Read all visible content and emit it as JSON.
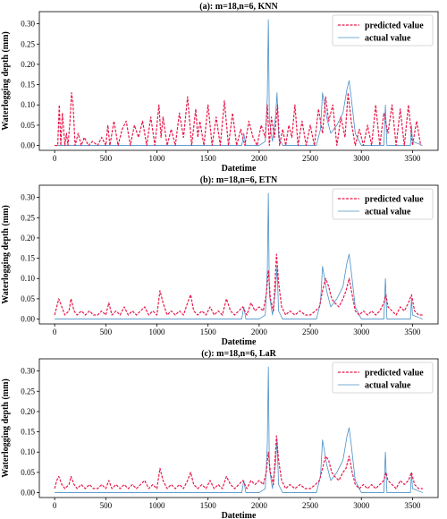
{
  "colors": {
    "predicted": "#e6194b",
    "actual": "#4a90c8",
    "axis": "#000000"
  },
  "chart_data": [
    {
      "type": "line",
      "title": "(a): m=18,n=6, KNN",
      "xlabel": "Datetime",
      "ylabel": "Waterlogging depth (mm)",
      "xlim": [
        -150,
        3750
      ],
      "ylim": [
        -0.012,
        0.33
      ],
      "xticks": [
        0,
        500,
        1000,
        1500,
        2000,
        2500,
        3000,
        3500
      ],
      "yticks": [
        0.0,
        0.05,
        0.1,
        0.15,
        0.2,
        0.25,
        0.3
      ],
      "ytick_labels": [
        "0.00",
        "0.05",
        "0.10",
        "0.15",
        "0.20",
        "0.25",
        "0.30"
      ],
      "legend_position": "upper right",
      "series": [
        {
          "name": "predicted value",
          "style": "dashed",
          "x": [
            0,
            30,
            45,
            60,
            75,
            100,
            115,
            130,
            150,
            165,
            180,
            200,
            230,
            260,
            290,
            330,
            370,
            420,
            460,
            500,
            520,
            540,
            580,
            620,
            660,
            700,
            740,
            780,
            820,
            860,
            900,
            940,
            980,
            1020,
            1040,
            1060,
            1100,
            1140,
            1180,
            1220,
            1260,
            1300,
            1340,
            1380,
            1400,
            1420,
            1460,
            1500,
            1540,
            1580,
            1620,
            1660,
            1700,
            1740,
            1780,
            1820,
            1860,
            1900,
            1940,
            1980,
            2020,
            2060,
            2080,
            2100,
            2120,
            2150,
            2180,
            2200,
            2230,
            2260,
            2290,
            2320,
            2350,
            2380,
            2420,
            2460,
            2500,
            2540,
            2580,
            2620,
            2650,
            2680,
            2720,
            2760,
            2800,
            2840,
            2870,
            2900,
            2940,
            2980,
            3020,
            3060,
            3100,
            3140,
            3180,
            3220,
            3260,
            3300,
            3340,
            3380,
            3420,
            3460,
            3500,
            3540,
            3580
          ],
          "y": [
            0.0,
            0.0,
            0.1,
            0.0,
            0.08,
            0.0,
            0.03,
            0.0,
            0.06,
            0.13,
            0.1,
            0.0,
            0.03,
            0.0,
            0.02,
            0.0,
            0.01,
            0.0,
            0.02,
            0.0,
            0.05,
            0.0,
            0.06,
            0.0,
            0.04,
            0.06,
            0.0,
            0.05,
            0.02,
            0.06,
            0.0,
            0.07,
            0.0,
            0.1,
            0.02,
            0.07,
            0.0,
            0.04,
            0.0,
            0.08,
            0.02,
            0.12,
            0.0,
            0.09,
            0.02,
            0.06,
            0.0,
            0.1,
            0.0,
            0.07,
            0.0,
            0.11,
            0.0,
            0.08,
            0.0,
            0.04,
            0.0,
            0.06,
            0.02,
            0.0,
            0.05,
            0.02,
            0.1,
            0.0,
            0.07,
            0.02,
            0.1,
            0.0,
            0.04,
            0.0,
            0.05,
            0.02,
            0.1,
            0.0,
            0.06,
            0.0,
            0.05,
            0.0,
            0.09,
            0.03,
            0.12,
            0.06,
            0.1,
            0.0,
            0.07,
            0.02,
            0.13,
            0.06,
            0.0,
            0.04,
            0.0,
            0.05,
            0.0,
            0.1,
            0.0,
            0.08,
            0.03,
            0.1,
            0.0,
            0.09,
            0.0,
            0.1,
            0.0,
            0.06,
            0.0
          ]
        },
        {
          "name": "actual value",
          "style": "solid",
          "x": [
            0,
            500,
            1000,
            1500,
            1830,
            1850,
            1870,
            2000,
            2060,
            2080,
            2090,
            2100,
            2130,
            2160,
            2175,
            2190,
            2230,
            2300,
            2560,
            2600,
            2620,
            2640,
            2660,
            2700,
            2760,
            2820,
            2860,
            2880,
            2900,
            2940,
            3000,
            3220,
            3235,
            3250,
            3300,
            3480,
            3490,
            3500,
            3600
          ],
          "y": [
            0.0,
            0.0,
            0.0,
            0.0,
            0.0,
            0.03,
            0.0,
            0.0,
            0.01,
            0.12,
            0.31,
            0.06,
            0.01,
            0.07,
            0.13,
            0.02,
            0.0,
            0.0,
            0.0,
            0.04,
            0.13,
            0.1,
            0.07,
            0.03,
            0.05,
            0.08,
            0.14,
            0.16,
            0.12,
            0.03,
            0.0,
            0.0,
            0.1,
            0.0,
            0.0,
            0.0,
            0.05,
            0.01,
            0.0
          ]
        }
      ]
    },
    {
      "type": "line",
      "title": "(b): m=18,n=6, ETN",
      "xlabel": "Datetime",
      "ylabel": "Waterlogging depth (mm)",
      "xlim": [
        -150,
        3750
      ],
      "ylim": [
        -0.012,
        0.33
      ],
      "xticks": [
        0,
        500,
        1000,
        1500,
        2000,
        2500,
        3000,
        3500
      ],
      "yticks": [
        0.0,
        0.05,
        0.1,
        0.15,
        0.2,
        0.25,
        0.3
      ],
      "ytick_labels": [
        "0.00",
        "0.05",
        "0.10",
        "0.15",
        "0.20",
        "0.25",
        "0.30"
      ],
      "legend_position": "upper right",
      "series": [
        {
          "name": "predicted value",
          "style": "dashed",
          "x": [
            0,
            20,
            40,
            70,
            100,
            140,
            160,
            190,
            220,
            260,
            300,
            340,
            380,
            420,
            460,
            500,
            530,
            560,
            600,
            640,
            680,
            720,
            760,
            800,
            840,
            880,
            920,
            960,
            1000,
            1030,
            1060,
            1100,
            1140,
            1180,
            1220,
            1260,
            1300,
            1330,
            1360,
            1400,
            1440,
            1480,
            1520,
            1560,
            1600,
            1640,
            1680,
            1720,
            1760,
            1800,
            1840,
            1880,
            1920,
            1960,
            2000,
            2040,
            2070,
            2090,
            2110,
            2140,
            2170,
            2190,
            2220,
            2260,
            2300,
            2350,
            2400,
            2450,
            2500,
            2550,
            2590,
            2620,
            2650,
            2680,
            2710,
            2740,
            2780,
            2820,
            2850,
            2880,
            2910,
            2940,
            2980,
            3020,
            3060,
            3100,
            3140,
            3180,
            3220,
            3240,
            3260,
            3300,
            3340,
            3380,
            3420,
            3460,
            3490,
            3520,
            3560,
            3600
          ],
          "y": [
            0.01,
            0.03,
            0.05,
            0.03,
            0.01,
            0.02,
            0.05,
            0.02,
            0.01,
            0.02,
            0.01,
            0.02,
            0.01,
            0.01,
            0.02,
            0.01,
            0.04,
            0.01,
            0.02,
            0.01,
            0.03,
            0.01,
            0.02,
            0.01,
            0.02,
            0.03,
            0.01,
            0.02,
            0.01,
            0.07,
            0.04,
            0.01,
            0.02,
            0.01,
            0.02,
            0.01,
            0.04,
            0.06,
            0.02,
            0.01,
            0.02,
            0.01,
            0.03,
            0.01,
            0.02,
            0.01,
            0.05,
            0.02,
            0.01,
            0.02,
            0.03,
            0.01,
            0.04,
            0.02,
            0.03,
            0.02,
            0.06,
            0.12,
            0.05,
            0.02,
            0.16,
            0.09,
            0.03,
            0.01,
            0.02,
            0.01,
            0.02,
            0.01,
            0.01,
            0.02,
            0.03,
            0.07,
            0.1,
            0.08,
            0.05,
            0.04,
            0.03,
            0.05,
            0.07,
            0.1,
            0.06,
            0.02,
            0.01,
            0.02,
            0.01,
            0.02,
            0.01,
            0.02,
            0.04,
            0.06,
            0.03,
            0.02,
            0.01,
            0.03,
            0.02,
            0.04,
            0.06,
            0.02,
            0.01,
            0.01
          ]
        },
        {
          "name": "actual value",
          "style": "solid",
          "x": [
            0,
            500,
            1000,
            1500,
            1830,
            1850,
            1870,
            2000,
            2060,
            2080,
            2090,
            2100,
            2130,
            2160,
            2175,
            2190,
            2230,
            2300,
            2560,
            2600,
            2620,
            2640,
            2660,
            2700,
            2760,
            2820,
            2860,
            2880,
            2900,
            2940,
            3000,
            3220,
            3235,
            3250,
            3300,
            3480,
            3490,
            3500,
            3600
          ],
          "y": [
            0.0,
            0.0,
            0.0,
            0.0,
            0.0,
            0.03,
            0.0,
            0.0,
            0.01,
            0.12,
            0.31,
            0.06,
            0.01,
            0.07,
            0.13,
            0.02,
            0.0,
            0.0,
            0.0,
            0.04,
            0.13,
            0.1,
            0.07,
            0.03,
            0.05,
            0.08,
            0.14,
            0.16,
            0.12,
            0.03,
            0.0,
            0.0,
            0.1,
            0.0,
            0.0,
            0.0,
            0.05,
            0.01,
            0.0
          ]
        }
      ]
    },
    {
      "type": "line",
      "title": "(c): m=18,n=6, LaR",
      "xlabel": "Datetime",
      "ylabel": "Waterlogging depth (mm)",
      "xlim": [
        -150,
        3750
      ],
      "ylim": [
        -0.012,
        0.33
      ],
      "xticks": [
        0,
        500,
        1000,
        1500,
        2000,
        2500,
        3000,
        3500
      ],
      "yticks": [
        0.0,
        0.05,
        0.1,
        0.15,
        0.2,
        0.25,
        0.3
      ],
      "ytick_labels": [
        "0.00",
        "0.05",
        "0.10",
        "0.15",
        "0.20",
        "0.25",
        "0.30"
      ],
      "legend_position": "upper right",
      "series": [
        {
          "name": "predicted value",
          "style": "dashed",
          "x": [
            0,
            20,
            40,
            70,
            100,
            140,
            160,
            190,
            220,
            260,
            300,
            340,
            380,
            420,
            460,
            500,
            530,
            560,
            600,
            640,
            680,
            720,
            760,
            800,
            840,
            880,
            920,
            960,
            1000,
            1030,
            1060,
            1100,
            1140,
            1180,
            1220,
            1260,
            1300,
            1330,
            1360,
            1400,
            1440,
            1480,
            1520,
            1560,
            1600,
            1640,
            1680,
            1720,
            1760,
            1800,
            1840,
            1880,
            1920,
            1960,
            2000,
            2040,
            2070,
            2090,
            2110,
            2140,
            2170,
            2190,
            2220,
            2260,
            2300,
            2350,
            2400,
            2450,
            2500,
            2550,
            2590,
            2620,
            2650,
            2680,
            2710,
            2740,
            2780,
            2820,
            2850,
            2880,
            2910,
            2940,
            2980,
            3020,
            3060,
            3100,
            3140,
            3180,
            3220,
            3240,
            3260,
            3300,
            3340,
            3380,
            3420,
            3460,
            3490,
            3520,
            3560,
            3600
          ],
          "y": [
            0.01,
            0.03,
            0.04,
            0.02,
            0.01,
            0.02,
            0.04,
            0.02,
            0.01,
            0.02,
            0.01,
            0.02,
            0.01,
            0.01,
            0.02,
            0.01,
            0.03,
            0.01,
            0.02,
            0.01,
            0.02,
            0.01,
            0.02,
            0.01,
            0.02,
            0.03,
            0.01,
            0.02,
            0.01,
            0.06,
            0.03,
            0.01,
            0.02,
            0.01,
            0.02,
            0.01,
            0.03,
            0.05,
            0.02,
            0.01,
            0.02,
            0.01,
            0.03,
            0.01,
            0.02,
            0.01,
            0.04,
            0.02,
            0.01,
            0.02,
            0.03,
            0.01,
            0.03,
            0.02,
            0.03,
            0.02,
            0.05,
            0.1,
            0.05,
            0.02,
            0.14,
            0.08,
            0.03,
            0.01,
            0.02,
            0.01,
            0.02,
            0.01,
            0.01,
            0.02,
            0.03,
            0.06,
            0.09,
            0.08,
            0.05,
            0.04,
            0.03,
            0.05,
            0.06,
            0.09,
            0.05,
            0.02,
            0.01,
            0.02,
            0.01,
            0.02,
            0.01,
            0.02,
            0.03,
            0.05,
            0.03,
            0.02,
            0.01,
            0.03,
            0.02,
            0.03,
            0.05,
            0.02,
            0.01,
            0.01
          ]
        },
        {
          "name": "actual value",
          "style": "solid",
          "x": [
            0,
            500,
            1000,
            1500,
            1830,
            1850,
            1870,
            2000,
            2060,
            2080,
            2090,
            2100,
            2130,
            2160,
            2175,
            2190,
            2230,
            2300,
            2560,
            2600,
            2620,
            2640,
            2660,
            2700,
            2760,
            2820,
            2860,
            2880,
            2900,
            2940,
            3000,
            3220,
            3235,
            3250,
            3300,
            3480,
            3490,
            3500,
            3600
          ],
          "y": [
            0.0,
            0.0,
            0.0,
            0.0,
            0.0,
            0.03,
            0.0,
            0.0,
            0.01,
            0.12,
            0.31,
            0.06,
            0.01,
            0.07,
            0.13,
            0.02,
            0.0,
            0.0,
            0.0,
            0.04,
            0.13,
            0.1,
            0.07,
            0.03,
            0.05,
            0.08,
            0.14,
            0.16,
            0.12,
            0.03,
            0.0,
            0.0,
            0.1,
            0.0,
            0.0,
            0.0,
            0.05,
            0.01,
            0.0
          ]
        }
      ]
    }
  ]
}
